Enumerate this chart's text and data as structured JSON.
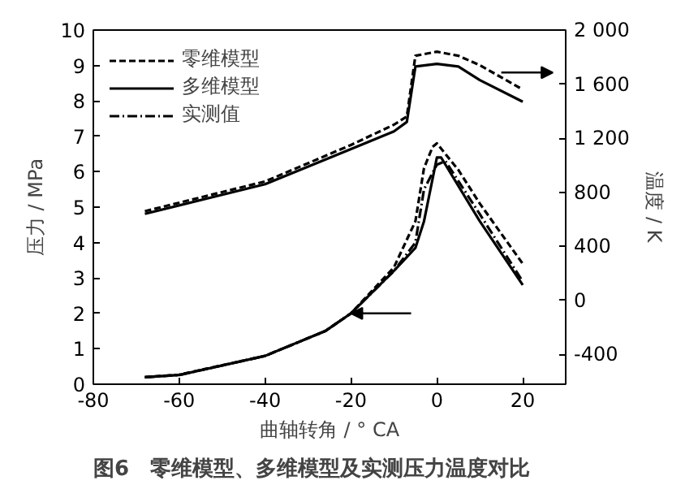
{
  "chart_data": {
    "type": "line",
    "title": "图6　零维模型、多维模型及实测压力温度对比",
    "xlabel": "曲轴转角 / ° CA",
    "ylabel": "压力 / MPa",
    "y2label": "温度 / K",
    "xlim": [
      -80,
      30
    ],
    "xticks": [
      -80,
      -60,
      -40,
      -20,
      0,
      20
    ],
    "ylim": [
      0,
      10
    ],
    "yticks": [
      0,
      1,
      2,
      3,
      4,
      5,
      6,
      7,
      8,
      9,
      10
    ],
    "y2lim": [
      -620,
      2000
    ],
    "y2ticks": [
      {
        "value": 2000,
        "label": "2 000"
      },
      {
        "value": 1600,
        "label": "1 600"
      },
      {
        "value": 1200,
        "label": "1 200"
      },
      800,
      400,
      0,
      -400
    ],
    "grid": false,
    "legend": "top left",
    "marker": "none",
    "series": [
      {
        "name": "零维模型",
        "color": "#000000",
        "line_style": "dashed",
        "x": [
          -68,
          -60,
          -40,
          -26,
          -20,
          -10,
          -5,
          -3,
          -1,
          0,
          5,
          10,
          20
        ],
        "values": [
          0.2,
          0.27,
          0.8,
          1.5,
          2.0,
          3.3,
          4.6,
          6.1,
          6.7,
          6.8,
          6.05,
          5.1,
          3.4
        ]
      },
      {
        "name": "多维模型",
        "color": "#000000",
        "line_style": "solid",
        "x": [
          -68,
          -60,
          -40,
          -26,
          -20,
          -10,
          -5,
          -3,
          0,
          1,
          10,
          20
        ],
        "values": [
          0.2,
          0.26,
          0.8,
          1.5,
          2.0,
          3.2,
          3.85,
          4.6,
          6.4,
          6.4,
          4.6,
          2.8
        ]
      },
      {
        "name": "实测值",
        "color": "#000000",
        "line_style": "dashdot",
        "x": [
          -68,
          -60,
          -40,
          -26,
          -20,
          -10,
          -5,
          -3,
          0,
          2,
          10,
          20
        ],
        "values": [
          0.2,
          0.26,
          0.8,
          1.5,
          2.0,
          3.2,
          4.0,
          5.5,
          6.2,
          6.3,
          4.8,
          2.9
        ]
      },
      {
        "color": "#000000",
        "line_style": "dashed",
        "axis": "y2",
        "x": [
          -68,
          -40,
          -20,
          -10,
          -7,
          -5,
          0,
          5,
          10,
          20
        ],
        "values": [
          660,
          880,
          1150,
          1300,
          1360,
          1810,
          1840,
          1810,
          1740,
          1560
        ]
      },
      {
        "color": "#000000",
        "line_style": "solid",
        "axis": "y2",
        "x": [
          -68,
          -40,
          -20,
          -10,
          -7,
          -5,
          0,
          5,
          10,
          20
        ],
        "values": [
          640,
          860,
          1120,
          1250,
          1320,
          1730,
          1750,
          1730,
          1630,
          1470
        ]
      }
    ]
  }
}
